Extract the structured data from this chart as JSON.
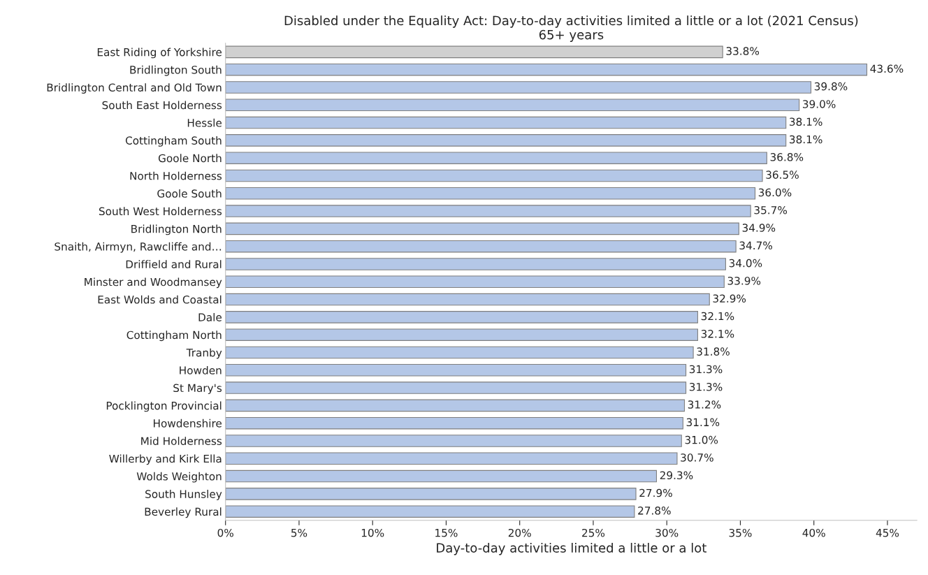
{
  "chart_data": {
    "type": "bar",
    "orientation": "horizontal",
    "title": "Disabled under the Equality Act: Day-to-day activities limited a little or a lot (2021 Census)",
    "subtitle": "65+ years",
    "xlabel": "Day-to-day activities limited a little or a lot",
    "categories": [
      "East Riding of Yorkshire",
      "Bridlington South",
      "Bridlington Central and Old Town",
      "South East Holderness",
      "Hessle",
      "Cottingham South",
      "Goole North",
      "North Holderness",
      "Goole South",
      "South West Holderness",
      "Bridlington North",
      "Snaith, Airmyn, Rawcliffe and…",
      "Driffield and Rural",
      "Minster and Woodmansey",
      "East Wolds and Coastal",
      "Dale",
      "Cottingham North",
      "Tranby",
      "Howden",
      "St Mary's",
      "Pocklington Provincial",
      "Howdenshire",
      "Mid Holderness",
      "Willerby and Kirk Ella",
      "Wolds Weighton",
      "South Hunsley",
      "Beverley Rural"
    ],
    "values": [
      33.8,
      43.6,
      39.8,
      39.0,
      38.1,
      38.1,
      36.8,
      36.5,
      36.0,
      35.7,
      34.9,
      34.7,
      34.0,
      33.9,
      32.9,
      32.1,
      32.1,
      31.8,
      31.3,
      31.3,
      31.2,
      31.1,
      31.0,
      30.7,
      29.3,
      27.9,
      27.8
    ],
    "value_labels": [
      "33.8%",
      "43.6%",
      "39.8%",
      "39.0%",
      "38.1%",
      "38.1%",
      "36.8%",
      "36.5%",
      "36.0%",
      "35.7%",
      "34.9%",
      "34.7%",
      "34.0%",
      "33.9%",
      "32.9%",
      "32.1%",
      "32.1%",
      "31.8%",
      "31.3%",
      "31.3%",
      "31.2%",
      "31.1%",
      "31.0%",
      "30.7%",
      "29.3%",
      "27.9%",
      "27.8%"
    ],
    "colors": [
      "#d0d0d0",
      "#b4c7e7",
      "#b4c7e7",
      "#b4c7e7",
      "#b4c7e7",
      "#b4c7e7",
      "#b4c7e7",
      "#b4c7e7",
      "#b4c7e7",
      "#b4c7e7",
      "#b4c7e7",
      "#b4c7e7",
      "#b4c7e7",
      "#b4c7e7",
      "#b4c7e7",
      "#b4c7e7",
      "#b4c7e7",
      "#b4c7e7",
      "#b4c7e7",
      "#b4c7e7",
      "#b4c7e7",
      "#b4c7e7",
      "#b4c7e7",
      "#b4c7e7",
      "#b4c7e7",
      "#b4c7e7",
      "#b4c7e7"
    ],
    "xlim": [
      0,
      47
    ],
    "xticks": [
      {
        "value": 0,
        "label": "0%"
      },
      {
        "value": 5,
        "label": "5%"
      },
      {
        "value": 10,
        "label": "10%"
      },
      {
        "value": 15,
        "label": "15%"
      },
      {
        "value": 20,
        "label": "20%"
      },
      {
        "value": 25,
        "label": "25%"
      },
      {
        "value": 30,
        "label": "30%"
      },
      {
        "value": 35,
        "label": "35%"
      },
      {
        "value": 40,
        "label": "40%"
      },
      {
        "value": 45,
        "label": "45%"
      }
    ],
    "grid": false,
    "legend": false
  }
}
